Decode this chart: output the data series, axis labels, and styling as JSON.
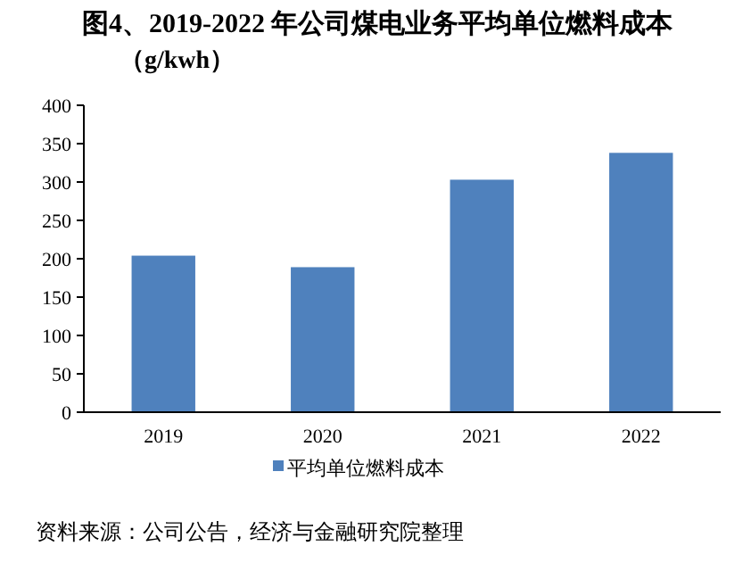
{
  "chart_data": {
    "type": "bar",
    "title": "图4、2019-2022 年公司煤电业务平均单位燃料成本",
    "subtitle": "（g/kwh）",
    "categories": [
      "2019",
      "2020",
      "2021",
      "2022"
    ],
    "series": [
      {
        "name": "平均单位燃料成本",
        "color": "#4f81bd",
        "values": [
          204,
          189,
          303,
          338
        ]
      }
    ],
    "ylim": [
      0,
      400
    ],
    "yticks": [
      0,
      50,
      100,
      150,
      200,
      250,
      300,
      350,
      400
    ],
    "grid": false,
    "legend": "bottom",
    "annotations": [
      "资料来源：公司公告，经济与金融研究院整理"
    ]
  }
}
